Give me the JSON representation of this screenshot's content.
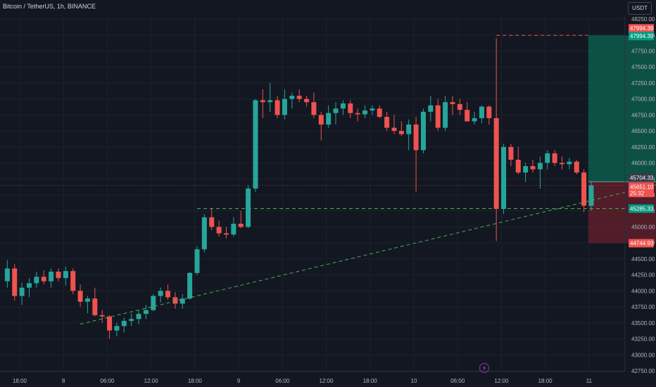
{
  "header": {
    "symbol_title": "Bitcoin / TetherUS, 1h, BINANCE",
    "currency_button": "USDT"
  },
  "colors": {
    "background": "#131722",
    "grid": "#1e222d",
    "axis_text": "#b2b5be",
    "up": "#26a69a",
    "down": "#ef5350",
    "profit_zone": "#0d5c4a",
    "loss_zone": "#5c1f2a",
    "support_line": "#4caf50",
    "stop_line": "#ef5350",
    "current_price_badge": "#ef5350",
    "entry_badge": "#363a45",
    "target_badge": "#089981"
  },
  "icons": {
    "flash": "lightning-icon"
  },
  "chart_data": {
    "type": "candlestick",
    "timeframe": "1h",
    "y_axis": {
      "min": 42750,
      "max": 48250,
      "ticks": [
        48250,
        48000,
        47750,
        47500,
        47250,
        47000,
        46750,
        46500,
        46250,
        46000,
        45750,
        45500,
        45250,
        45000,
        44750,
        44500,
        44250,
        44000,
        43750,
        43500,
        43250,
        43000,
        42750
      ],
      "tick_labels": [
        "48250.00",
        "48000.00",
        "47750.00",
        "47500.00",
        "47250.00",
        "47000.00",
        "46750.00",
        "46500.00",
        "46250.00",
        "46000.00",
        "45750.00",
        "45500.00",
        "45250.00",
        "45000.00",
        "44750.00",
        "44500.00",
        "44250.00",
        "44000.00",
        "43750.00",
        "43500.00",
        "43250.00",
        "43000.00",
        "42750.00"
      ]
    },
    "x_axis": {
      "start_hour": 16,
      "end_hour": 70,
      "ticks": [
        {
          "hour": 18,
          "label": "18:00"
        },
        {
          "hour": 24,
          "label": "8"
        },
        {
          "hour": 30,
          "label": "06:00"
        },
        {
          "hour": 36,
          "label": "12:00"
        },
        {
          "hour": 42,
          "label": "18:00"
        },
        {
          "hour": 48,
          "label": "9"
        },
        {
          "hour": 54,
          "label": "06:00"
        },
        {
          "hour": 60,
          "label": "12:00"
        },
        {
          "hour": 66,
          "label": "18:00"
        },
        {
          "hour": 72,
          "label": "10"
        },
        {
          "hour": 78,
          "label": "06:00"
        },
        {
          "hour": 84,
          "label": "12:00"
        },
        {
          "hour": 90,
          "label": "18:00"
        },
        {
          "hour": 96,
          "label": "11"
        },
        {
          "hour": 102,
          "label": "06:00"
        }
      ]
    },
    "candles": [
      {
        "o": 44150,
        "h": 44480,
        "l": 44050,
        "c": 44350
      },
      {
        "o": 44350,
        "h": 44420,
        "l": 43850,
        "c": 43920
      },
      {
        "o": 43920,
        "h": 44130,
        "l": 43780,
        "c": 44050
      },
      {
        "o": 44050,
        "h": 44200,
        "l": 43900,
        "c": 44120
      },
      {
        "o": 44120,
        "h": 44300,
        "l": 44050,
        "c": 44220
      },
      {
        "o": 44220,
        "h": 44320,
        "l": 44100,
        "c": 44150
      },
      {
        "o": 44150,
        "h": 44350,
        "l": 44050,
        "c": 44300
      },
      {
        "o": 44300,
        "h": 44350,
        "l": 44150,
        "c": 44200
      },
      {
        "o": 44200,
        "h": 44380,
        "l": 44080,
        "c": 44310
      },
      {
        "o": 44310,
        "h": 44350,
        "l": 43950,
        "c": 44000
      },
      {
        "o": 44000,
        "h": 44100,
        "l": 43750,
        "c": 43830
      },
      {
        "o": 43830,
        "h": 43920,
        "l": 43650,
        "c": 43880
      },
      {
        "o": 43880,
        "h": 44050,
        "l": 43600,
        "c": 43620
      },
      {
        "o": 43620,
        "h": 43700,
        "l": 43500,
        "c": 43600
      },
      {
        "o": 43600,
        "h": 43620,
        "l": 43250,
        "c": 43380
      },
      {
        "o": 43380,
        "h": 43500,
        "l": 43290,
        "c": 43450
      },
      {
        "o": 43450,
        "h": 43580,
        "l": 43350,
        "c": 43530
      },
      {
        "o": 43530,
        "h": 43650,
        "l": 43450,
        "c": 43560
      },
      {
        "o": 43560,
        "h": 43700,
        "l": 43480,
        "c": 43640
      },
      {
        "o": 43640,
        "h": 43780,
        "l": 43560,
        "c": 43700
      },
      {
        "o": 43700,
        "h": 43950,
        "l": 43680,
        "c": 43920
      },
      {
        "o": 43920,
        "h": 44050,
        "l": 43820,
        "c": 44000
      },
      {
        "o": 44000,
        "h": 44100,
        "l": 43860,
        "c": 43900
      },
      {
        "o": 43900,
        "h": 43980,
        "l": 43720,
        "c": 43800
      },
      {
        "o": 43800,
        "h": 43950,
        "l": 43720,
        "c": 43880
      },
      {
        "o": 43880,
        "h": 44300,
        "l": 43860,
        "c": 44280
      },
      {
        "o": 44280,
        "h": 44700,
        "l": 44250,
        "c": 44650
      },
      {
        "o": 44650,
        "h": 45200,
        "l": 44600,
        "c": 45150
      },
      {
        "o": 45150,
        "h": 45300,
        "l": 44950,
        "c": 45000
      },
      {
        "o": 45000,
        "h": 45100,
        "l": 44850,
        "c": 44900
      },
      {
        "o": 44900,
        "h": 45000,
        "l": 44820,
        "c": 44880
      },
      {
        "o": 44880,
        "h": 45150,
        "l": 44850,
        "c": 45050
      },
      {
        "o": 45050,
        "h": 45250,
        "l": 44980,
        "c": 45000
      },
      {
        "o": 45000,
        "h": 45650,
        "l": 44980,
        "c": 45600
      },
      {
        "o": 45600,
        "h": 47000,
        "l": 45550,
        "c": 46980
      },
      {
        "o": 46980,
        "h": 47150,
        "l": 46700,
        "c": 46950
      },
      {
        "o": 46950,
        "h": 47250,
        "l": 46800,
        "c": 46980
      },
      {
        "o": 46980,
        "h": 47050,
        "l": 46700,
        "c": 46750
      },
      {
        "o": 46750,
        "h": 47150,
        "l": 46680,
        "c": 47000
      },
      {
        "o": 47000,
        "h": 47100,
        "l": 46850,
        "c": 47050
      },
      {
        "o": 47050,
        "h": 47150,
        "l": 46950,
        "c": 47000
      },
      {
        "o": 47000,
        "h": 47050,
        "l": 46880,
        "c": 46950
      },
      {
        "o": 46950,
        "h": 47100,
        "l": 46700,
        "c": 46750
      },
      {
        "o": 46750,
        "h": 46800,
        "l": 46350,
        "c": 46600
      },
      {
        "o": 46600,
        "h": 46900,
        "l": 46550,
        "c": 46780
      },
      {
        "o": 46780,
        "h": 46950,
        "l": 46600,
        "c": 46850
      },
      {
        "o": 46850,
        "h": 46980,
        "l": 46750,
        "c": 46930
      },
      {
        "o": 46930,
        "h": 46980,
        "l": 46700,
        "c": 46780
      },
      {
        "o": 46780,
        "h": 46850,
        "l": 46650,
        "c": 46760
      },
      {
        "o": 46760,
        "h": 46900,
        "l": 46700,
        "c": 46820
      },
      {
        "o": 46820,
        "h": 46900,
        "l": 46750,
        "c": 46850
      },
      {
        "o": 46850,
        "h": 46900,
        "l": 46700,
        "c": 46720
      },
      {
        "o": 46720,
        "h": 46800,
        "l": 46500,
        "c": 46550
      },
      {
        "o": 46550,
        "h": 46750,
        "l": 46450,
        "c": 46500
      },
      {
        "o": 46500,
        "h": 46650,
        "l": 46420,
        "c": 46450
      },
      {
        "o": 46450,
        "h": 46680,
        "l": 46200,
        "c": 46600
      },
      {
        "o": 46600,
        "h": 46720,
        "l": 45550,
        "c": 46200
      },
      {
        "o": 46200,
        "h": 46850,
        "l": 46150,
        "c": 46800
      },
      {
        "o": 46800,
        "h": 47050,
        "l": 46650,
        "c": 46900
      },
      {
        "o": 46900,
        "h": 47000,
        "l": 46500,
        "c": 46550
      },
      {
        "o": 46550,
        "h": 47050,
        "l": 46500,
        "c": 46950
      },
      {
        "o": 46950,
        "h": 47050,
        "l": 46750,
        "c": 46920
      },
      {
        "o": 46920,
        "h": 47000,
        "l": 46750,
        "c": 46830
      },
      {
        "o": 46830,
        "h": 46950,
        "l": 46650,
        "c": 46650
      },
      {
        "o": 46650,
        "h": 46800,
        "l": 46600,
        "c": 46700
      },
      {
        "o": 46700,
        "h": 46900,
        "l": 46620,
        "c": 46880
      },
      {
        "o": 46880,
        "h": 46900,
        "l": 46600,
        "c": 46700
      },
      {
        "o": 46700,
        "h": 47950,
        "l": 44780,
        "c": 45280
      },
      {
        "o": 45280,
        "h": 46300,
        "l": 45200,
        "c": 46250
      },
      {
        "o": 46250,
        "h": 46300,
        "l": 45950,
        "c": 46050
      },
      {
        "o": 46050,
        "h": 46250,
        "l": 45820,
        "c": 45850
      },
      {
        "o": 45850,
        "h": 46000,
        "l": 45700,
        "c": 45950
      },
      {
        "o": 45950,
        "h": 46050,
        "l": 45850,
        "c": 45900
      },
      {
        "o": 45900,
        "h": 46100,
        "l": 45600,
        "c": 46000
      },
      {
        "o": 46000,
        "h": 46200,
        "l": 45900,
        "c": 46150
      },
      {
        "o": 46150,
        "h": 46200,
        "l": 45950,
        "c": 46000
      },
      {
        "o": 46000,
        "h": 46100,
        "l": 45900,
        "c": 45980
      },
      {
        "o": 45980,
        "h": 46080,
        "l": 45900,
        "c": 46020
      },
      {
        "o": 46020,
        "h": 46050,
        "l": 45820,
        "c": 45850
      },
      {
        "o": 45850,
        "h": 45900,
        "l": 45230,
        "c": 45330
      },
      {
        "o": 45330,
        "h": 45720,
        "l": 45250,
        "c": 45650
      }
    ],
    "position": {
      "type": "long",
      "entry": 45704.33,
      "target": 47994.39,
      "stop": 44744.93,
      "start_index": 79.5,
      "end_index": 102
    },
    "support_level": 45285.33,
    "trendline": {
      "i1": 10,
      "p1": 43480,
      "i2": 102,
      "p2": 46020
    },
    "price_labels": {
      "target_red": "47994.39",
      "target_green": "47994.39",
      "entry": "45704.33",
      "current": "45651.10",
      "countdown": "25:32",
      "support": "45285.33",
      "stop": "44744.93"
    }
  }
}
